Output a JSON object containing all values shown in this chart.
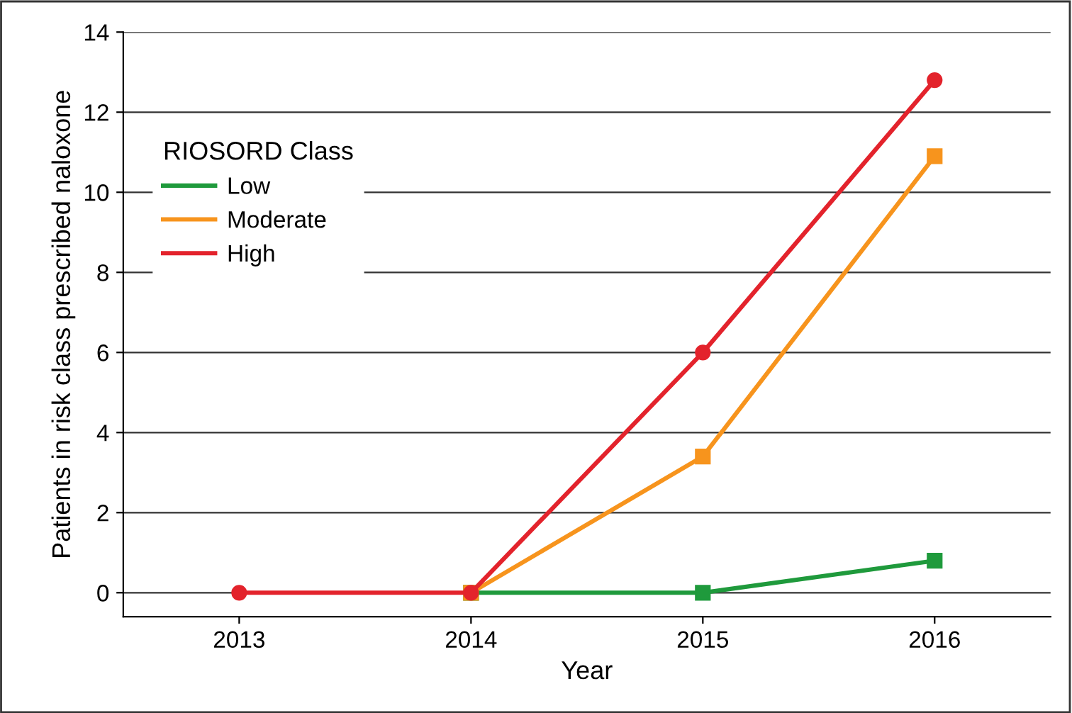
{
  "chart_data": {
    "type": "line",
    "xlabel": "Year",
    "ylabel": "Patients in risk class prescribed naloxone",
    "legend_title": "RIOSORD Class",
    "categories": [
      "2013",
      "2014",
      "2015",
      "2016"
    ],
    "series": [
      {
        "name": "Low",
        "color": "#1f9a3c",
        "marker": "square",
        "values": [
          null,
          0,
          0,
          0.8
        ]
      },
      {
        "name": "Moderate",
        "color": "#f7941d",
        "marker": "square",
        "values": [
          null,
          0,
          3.4,
          10.9
        ]
      },
      {
        "name": "High",
        "color": "#e3232c",
        "marker": "circle",
        "values": [
          0,
          0,
          6,
          12.8
        ]
      }
    ],
    "ylim": [
      -0.6,
      14
    ],
    "yticks": [
      0,
      2,
      4,
      6,
      8,
      10,
      12,
      14
    ],
    "grid": "y",
    "legend": "top left",
    "line_style": "solid"
  }
}
